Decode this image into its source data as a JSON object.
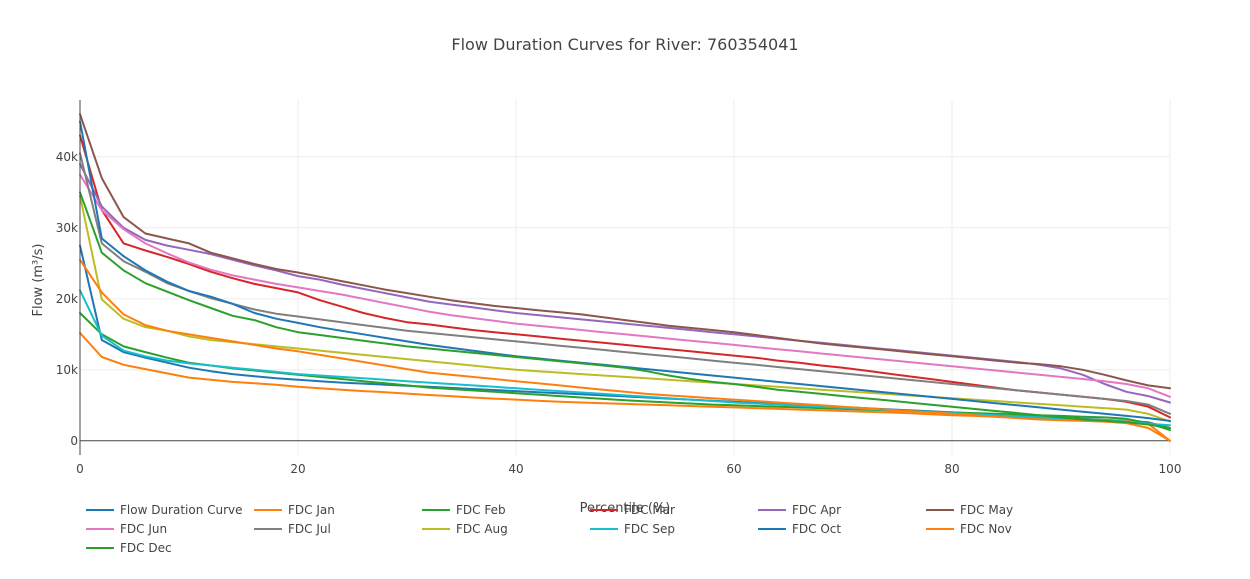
{
  "chart_data": {
    "type": "line",
    "title": "Flow Duration Curves for River: 760354041",
    "xlabel": "Percentile (%)",
    "ylabel": "Flow (m³/s)",
    "xlim": [
      0,
      100
    ],
    "ylim": [
      -2000,
      48000
    ],
    "x_ticks": [
      0,
      20,
      40,
      60,
      80,
      100
    ],
    "x_tick_labels": [
      "0",
      "20",
      "40",
      "60",
      "80",
      "100"
    ],
    "y_ticks": [
      0,
      10000,
      20000,
      30000,
      40000
    ],
    "y_tick_labels": [
      "0",
      "10k",
      "20k",
      "30k",
      "40k"
    ],
    "grid": true,
    "legend_placement": "bottom",
    "x": [
      0,
      2,
      4,
      6,
      8,
      10,
      12,
      14,
      16,
      18,
      20,
      22,
      24,
      26,
      28,
      30,
      32,
      34,
      36,
      38,
      40,
      42,
      44,
      46,
      48,
      50,
      52,
      54,
      56,
      58,
      60,
      62,
      64,
      66,
      68,
      70,
      72,
      74,
      76,
      78,
      80,
      82,
      84,
      86,
      88,
      90,
      92,
      94,
      96,
      98,
      100
    ],
    "series": [
      {
        "name": "Flow Duration Curve",
        "color": "#1f77b4",
        "values": [
          27500,
          14200,
          12500,
          11700,
          11000,
          10300,
          9800,
          9400,
          9100,
          8800,
          8600,
          8400,
          8200,
          8050,
          7900,
          7750,
          7600,
          7450,
          7300,
          7150,
          7000,
          6850,
          6700,
          6550,
          6400,
          6250,
          6100,
          5950,
          5800,
          5650,
          5500,
          5350,
          5200,
          5050,
          4900,
          4750,
          4600,
          4450,
          4300,
          4150,
          4000,
          3850,
          3700,
          3550,
          3400,
          3250,
          3100,
          2950,
          2800,
          2600,
          1800
        ]
      },
      {
        "name": "FDC Jan",
        "color": "#ff7f0e",
        "values": [
          15200,
          11800,
          10700,
          10100,
          9500,
          8900,
          8600,
          8300,
          8100,
          7900,
          7600,
          7400,
          7200,
          7000,
          6850,
          6650,
          6450,
          6300,
          6100,
          5950,
          5800,
          5650,
          5500,
          5400,
          5300,
          5200,
          5100,
          5000,
          4900,
          4800,
          4700,
          4600,
          4500,
          4400,
          4300,
          4200,
          4100,
          4000,
          3900,
          3750,
          3600,
          3500,
          3400,
          3300,
          3200,
          3100,
          3000,
          2900,
          2800,
          2400,
          0
        ]
      },
      {
        "name": "FDC Feb",
        "color": "#2ca02c",
        "values": [
          18000,
          15000,
          13300,
          12500,
          11700,
          11000,
          10600,
          10200,
          9900,
          9600,
          9300,
          9000,
          8700,
          8400,
          8100,
          7800,
          7500,
          7300,
          7100,
          6900,
          6700,
          6500,
          6300,
          6100,
          5900,
          5700,
          5550,
          5400,
          5250,
          5100,
          5000,
          4900,
          4800,
          4700,
          4600,
          4500,
          4400,
          4300,
          4200,
          4100,
          4000,
          3900,
          3800,
          3700,
          3600,
          3500,
          3400,
          3300,
          3100,
          2500,
          1500
        ]
      },
      {
        "name": "FDC Mar",
        "color": "#d62728",
        "values": [
          43000,
          32500,
          27800,
          26800,
          25900,
          24900,
          23800,
          22900,
          22100,
          21500,
          20900,
          19800,
          18900,
          18000,
          17300,
          16700,
          16400,
          16000,
          15600,
          15300,
          15000,
          14700,
          14400,
          14100,
          13800,
          13500,
          13200,
          12900,
          12600,
          12300,
          12000,
          11700,
          11300,
          11000,
          10600,
          10300,
          9900,
          9500,
          9100,
          8700,
          8300,
          7900,
          7500,
          7100,
          6800,
          6500,
          6200,
          5900,
          5500,
          4800,
          3300
        ]
      },
      {
        "name": "FDC Apr",
        "color": "#9467bd",
        "values": [
          39000,
          33000,
          30000,
          28300,
          27500,
          26900,
          26300,
          25500,
          24700,
          24000,
          23200,
          22700,
          22000,
          21400,
          20800,
          20200,
          19600,
          19200,
          18800,
          18400,
          18000,
          17700,
          17400,
          17100,
          16800,
          16500,
          16200,
          15900,
          15600,
          15300,
          15000,
          14700,
          14400,
          14100,
          13800,
          13500,
          13200,
          12900,
          12600,
          12300,
          12000,
          11700,
          11400,
          11100,
          10700,
          10200,
          9300,
          8000,
          6900,
          6300,
          5400
        ]
      },
      {
        "name": "FDC May",
        "color": "#8c564b",
        "values": [
          46000,
          37000,
          31500,
          29200,
          28500,
          27800,
          26500,
          25700,
          24900,
          24200,
          23700,
          23100,
          22500,
          21900,
          21300,
          20800,
          20300,
          19800,
          19400,
          19000,
          18700,
          18400,
          18100,
          17800,
          17400,
          17000,
          16600,
          16200,
          15900,
          15600,
          15300,
          14900,
          14500,
          14100,
          13700,
          13400,
          13100,
          12800,
          12500,
          12200,
          11900,
          11600,
          11300,
          11000,
          10800,
          10500,
          10000,
          9300,
          8500,
          7800,
          7400
        ]
      },
      {
        "name": "FDC Jun",
        "color": "#e377c2",
        "values": [
          37500,
          32500,
          29800,
          27800,
          26400,
          25100,
          24100,
          23300,
          22700,
          22100,
          21600,
          21100,
          20600,
          20000,
          19400,
          18800,
          18200,
          17700,
          17300,
          16900,
          16500,
          16200,
          15900,
          15600,
          15300,
          15000,
          14700,
          14400,
          14100,
          13800,
          13500,
          13200,
          12900,
          12600,
          12300,
          12000,
          11700,
          11400,
          11100,
          10800,
          10500,
          10200,
          9900,
          9600,
          9300,
          9000,
          8700,
          8400,
          8000,
          7400,
          6200
        ]
      },
      {
        "name": "FDC Jul",
        "color": "#7f7f7f",
        "values": [
          40500,
          27800,
          25300,
          23800,
          22200,
          21100,
          20100,
          19300,
          18500,
          17900,
          17500,
          17100,
          16700,
          16300,
          15900,
          15500,
          15200,
          14900,
          14600,
          14300,
          14000,
          13700,
          13400,
          13100,
          12800,
          12500,
          12200,
          11900,
          11600,
          11300,
          11000,
          10700,
          10400,
          10100,
          9800,
          9500,
          9200,
          8900,
          8600,
          8300,
          8000,
          7700,
          7400,
          7100,
          6800,
          6500,
          6200,
          5900,
          5600,
          5100,
          3800
        ]
      },
      {
        "name": "FDC Aug",
        "color": "#bcbd22",
        "values": [
          34500,
          19900,
          17200,
          16000,
          15500,
          14700,
          14200,
          13900,
          13600,
          13300,
          13000,
          12700,
          12400,
          12100,
          11800,
          11500,
          11200,
          10900,
          10600,
          10300,
          10000,
          9800,
          9600,
          9400,
          9200,
          9000,
          8800,
          8600,
          8400,
          8200,
          8000,
          7800,
          7600,
          7400,
          7200,
          7000,
          6800,
          6600,
          6400,
          6200,
          6000,
          5800,
          5600,
          5400,
          5200,
          5000,
          4800,
          4600,
          4400,
          3800,
          2700
        ]
      },
      {
        "name": "FDC Sep",
        "color": "#17becf",
        "values": [
          21200,
          14800,
          12700,
          11900,
          11300,
          10900,
          10600,
          10300,
          10000,
          9700,
          9400,
          9200,
          9000,
          8800,
          8600,
          8400,
          8200,
          8000,
          7800,
          7600,
          7400,
          7200,
          7000,
          6800,
          6600,
          6400,
          6200,
          6000,
          5800,
          5600,
          5400,
          5250,
          5100,
          4950,
          4800,
          4650,
          4500,
          4350,
          4200,
          4050,
          3900,
          3750,
          3600,
          3450,
          3300,
          3150,
          3000,
          2900,
          2700,
          2400,
          2200
        ]
      },
      {
        "name": "FDC Oct",
        "color": "#1f77b4",
        "values": [
          45000,
          28500,
          26000,
          24000,
          22400,
          21100,
          20300,
          19300,
          18000,
          17200,
          16600,
          16000,
          15500,
          15000,
          14500,
          14000,
          13500,
          13100,
          12700,
          12300,
          11900,
          11600,
          11300,
          11000,
          10700,
          10400,
          10100,
          9800,
          9500,
          9200,
          8900,
          8600,
          8300,
          8000,
          7700,
          7400,
          7100,
          6800,
          6500,
          6200,
          5900,
          5600,
          5300,
          5000,
          4700,
          4400,
          4100,
          3800,
          3500,
          3200,
          2800
        ]
      },
      {
        "name": "FDC Nov",
        "color": "#ff7f0e",
        "values": [
          25500,
          20900,
          17800,
          16300,
          15500,
          15000,
          14500,
          14000,
          13500,
          13000,
          12600,
          12100,
          11600,
          11100,
          10600,
          10100,
          9600,
          9300,
          9000,
          8700,
          8400,
          8100,
          7800,
          7500,
          7200,
          6900,
          6600,
          6400,
          6200,
          6000,
          5800,
          5600,
          5400,
          5200,
          5000,
          4800,
          4600,
          4400,
          4200,
          4000,
          3800,
          3600,
          3400,
          3200,
          3000,
          2900,
          2800,
          2700,
          2500,
          1800,
          0
        ]
      },
      {
        "name": "FDC Dec",
        "color": "#2ca02c",
        "values": [
          35000,
          26500,
          24000,
          22200,
          21000,
          19800,
          18700,
          17600,
          17000,
          16000,
          15300,
          14900,
          14500,
          14100,
          13700,
          13300,
          13000,
          12700,
          12400,
          12100,
          11800,
          11500,
          11200,
          10900,
          10600,
          10300,
          9800,
          9200,
          8700,
          8300,
          8000,
          7600,
          7200,
          6900,
          6600,
          6300,
          6000,
          5700,
          5400,
          5100,
          4800,
          4500,
          4200,
          3900,
          3600,
          3300,
          3000,
          2800,
          2600,
          2300,
          1800
        ]
      }
    ]
  }
}
